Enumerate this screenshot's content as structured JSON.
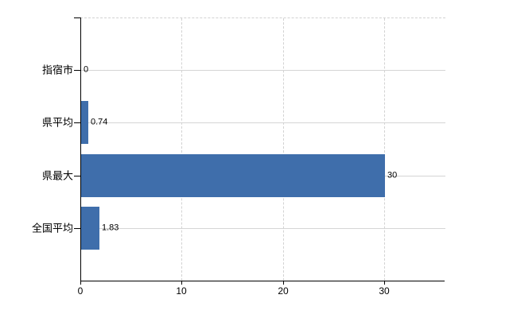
{
  "chart_data": {
    "type": "bar",
    "orientation": "horizontal",
    "title": "",
    "xlabel": "",
    "ylabel": "",
    "categories": [
      "指宿市",
      "県平均",
      "県最大",
      "全国平均"
    ],
    "values": [
      0,
      0.74,
      30,
      1.83
    ],
    "data_labels": [
      "0",
      "0.74",
      "30",
      "1.83"
    ],
    "x_ticks": [
      0,
      10,
      20,
      30
    ],
    "x_tick_labels": [
      "0",
      "10",
      "20",
      "30"
    ],
    "xlim": [
      0,
      36
    ],
    "grid": {
      "horizontal_style": "solid",
      "vertical_style": "dashed",
      "top_border_style": "dashed"
    },
    "legend": "none",
    "colors": {
      "bar": "#3f6eab",
      "gridline": "#d5d5d5",
      "axis": "#000000",
      "text": "#000000",
      "background": "#ffffff"
    }
  }
}
